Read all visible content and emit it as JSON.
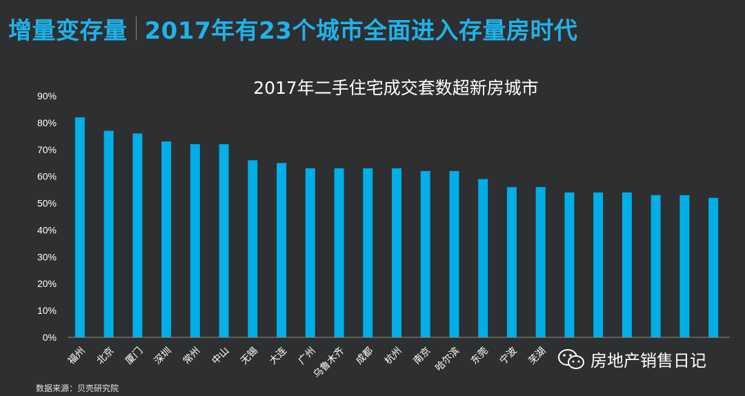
{
  "header": {
    "left_title": "增量变存量",
    "right_title": "2017年有23个城市全面进入存量房时代"
  },
  "source": "数据来源：贝壳研究院",
  "watermark": "房地产销售日记",
  "colors": {
    "background": "#2e2f30",
    "accent": "#1fb3ea",
    "bar": "#00aee8"
  },
  "chart_data": {
    "type": "bar",
    "title": "2017年二手住宅成交套数超新房城市",
    "xlabel": "",
    "ylabel": "",
    "ylim": [
      0,
      90
    ],
    "yticks": [
      "0%",
      "10%",
      "20%",
      "30%",
      "40%",
      "50%",
      "60%",
      "70%",
      "80%",
      "90%"
    ],
    "categories": [
      "福州",
      "北京",
      "厦门",
      "深圳",
      "常州",
      "中山",
      "无锡",
      "大连",
      "广州",
      "乌鲁木齐",
      "成都",
      "杭州",
      "南京",
      "哈尔滨",
      "东莞",
      "宁波",
      "芜湖",
      "",
      "",
      "",
      "",
      "",
      ""
    ],
    "values": [
      82,
      77,
      76,
      73,
      72,
      72,
      66,
      65,
      63,
      63,
      63,
      63,
      62,
      62,
      59,
      56,
      56,
      54,
      54,
      54,
      53,
      53,
      52
    ],
    "grid": false,
    "legend": "none"
  }
}
